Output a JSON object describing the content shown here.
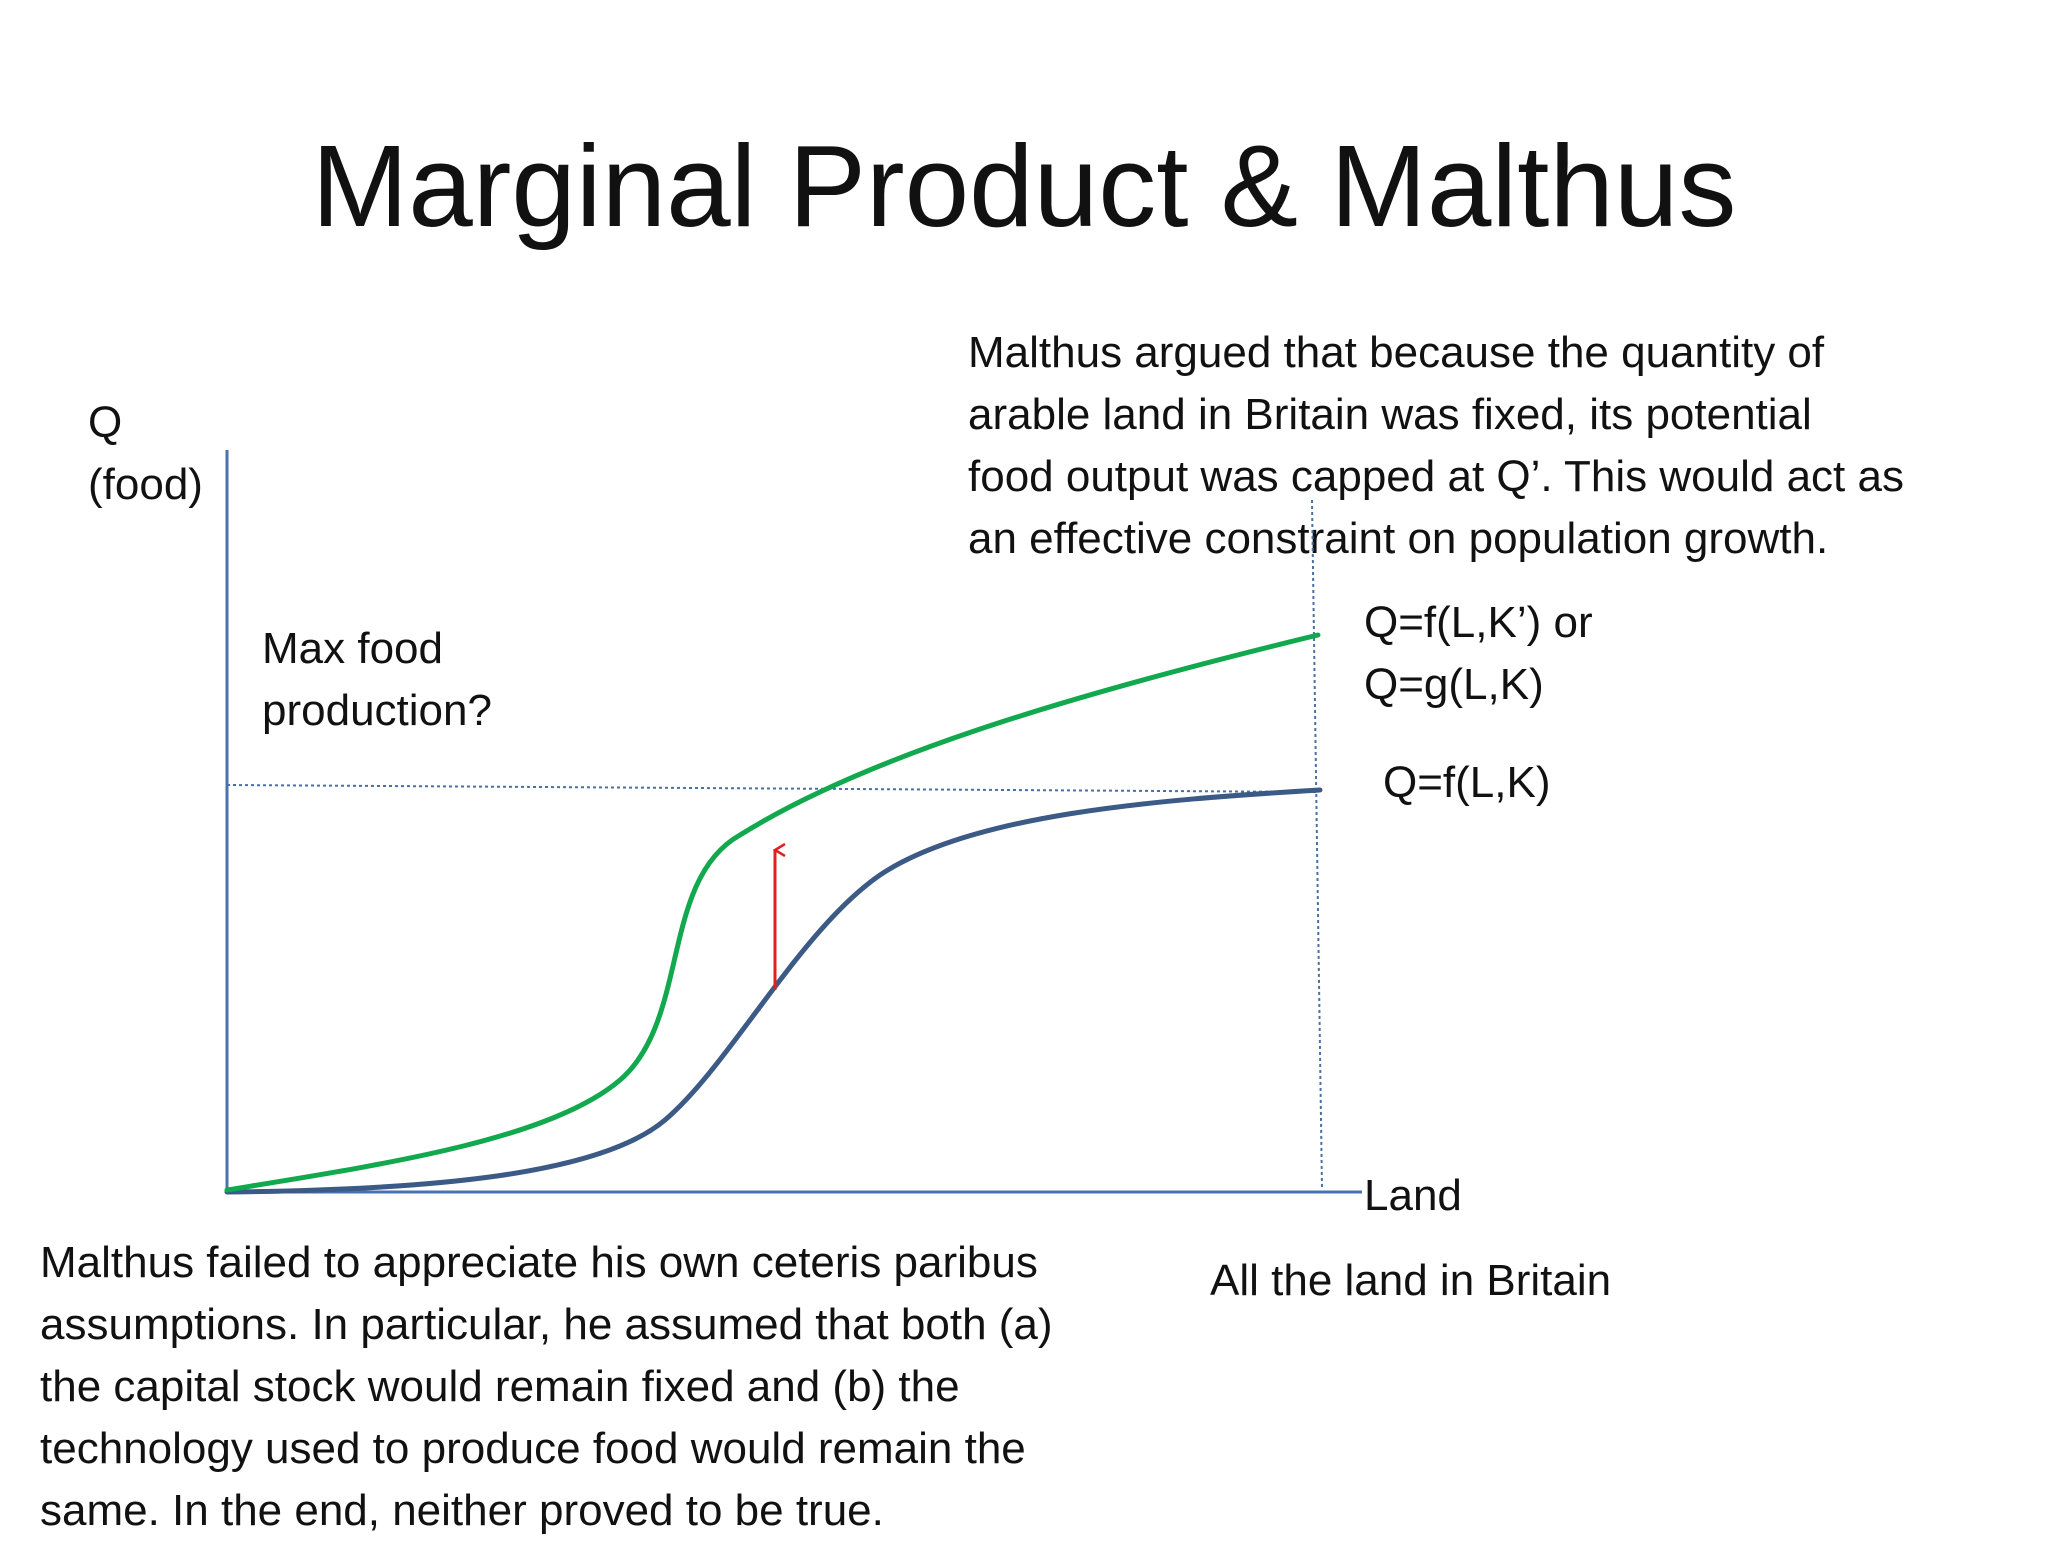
{
  "slide": {
    "title": "Marginal Product & Malthus"
  },
  "axes": {
    "y_label_line1": "Q",
    "y_label_line2": "(food)",
    "x_label": "Land",
    "x_marker_label": "All the land in Britain"
  },
  "annotations": {
    "max_food_line1": "Max food",
    "max_food_line2": "production?",
    "top_note_lines": [
      "Malthus argued that because the quantity of",
      "arable land in Britain was fixed, its potential",
      "food output was capped at Q’. This would act as",
      "an effective constraint on population growth."
    ],
    "bottom_note_lines": [
      "Malthus failed to appreciate his own ceteris paribus",
      "assumptions. In particular, he assumed that both (a)",
      "the capital stock would remain fixed and (b) the",
      "technology used to produce food would remain the",
      "same. In the end, neither proved to be true."
    ]
  },
  "curves": {
    "green": {
      "label_line1": "Q=f(L,K’) or",
      "label_line2": "Q=g(L,K)",
      "color": "#12a84e"
    },
    "blue": {
      "label": "Q=f(L,K)",
      "color": "#3b5a86"
    }
  },
  "colors": {
    "axis": "#4a72b0",
    "guide": "#4a6fa5",
    "arrow": "#e02020"
  }
}
